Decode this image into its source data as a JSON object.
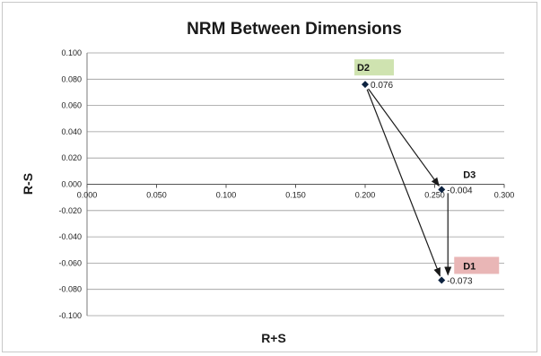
{
  "chart_data": {
    "type": "scatter",
    "title": "NRM Between Dimensions",
    "xlabel": "R+S",
    "ylabel": "R-S",
    "xlim": [
      0,
      0.3
    ],
    "ylim": [
      -0.1,
      0.1
    ],
    "x_ticks": [
      "0.000",
      "0.050",
      "0.100",
      "0.150",
      "0.200",
      "0.250",
      "0.300"
    ],
    "y_ticks": [
      "0.100",
      "0.080",
      "0.060",
      "0.040",
      "0.020",
      "0.000",
      "-0.020",
      "-0.040",
      "-0.060",
      "-0.080",
      "-0.100"
    ],
    "grid": "horizontal",
    "points": [
      {
        "name": "D2",
        "x": 0.2,
        "y": 0.076,
        "label": "0.076",
        "highlight": "#cfe3b0"
      },
      {
        "name": "D3",
        "x": 0.255,
        "y": -0.004,
        "label": "-0.004",
        "highlight": ""
      },
      {
        "name": "D1",
        "x": 0.255,
        "y": -0.073,
        "label": "-0.073",
        "highlight": "#e9b6b6"
      }
    ],
    "arrows": [
      {
        "from": "D2",
        "to": "D3"
      },
      {
        "from": "D2",
        "to": "D1"
      },
      {
        "from": "D3",
        "to": "D1"
      }
    ],
    "colors": {
      "marker": "#0d2340",
      "grid": "#9a9a9a",
      "arrow": "#1a1a1a"
    }
  }
}
